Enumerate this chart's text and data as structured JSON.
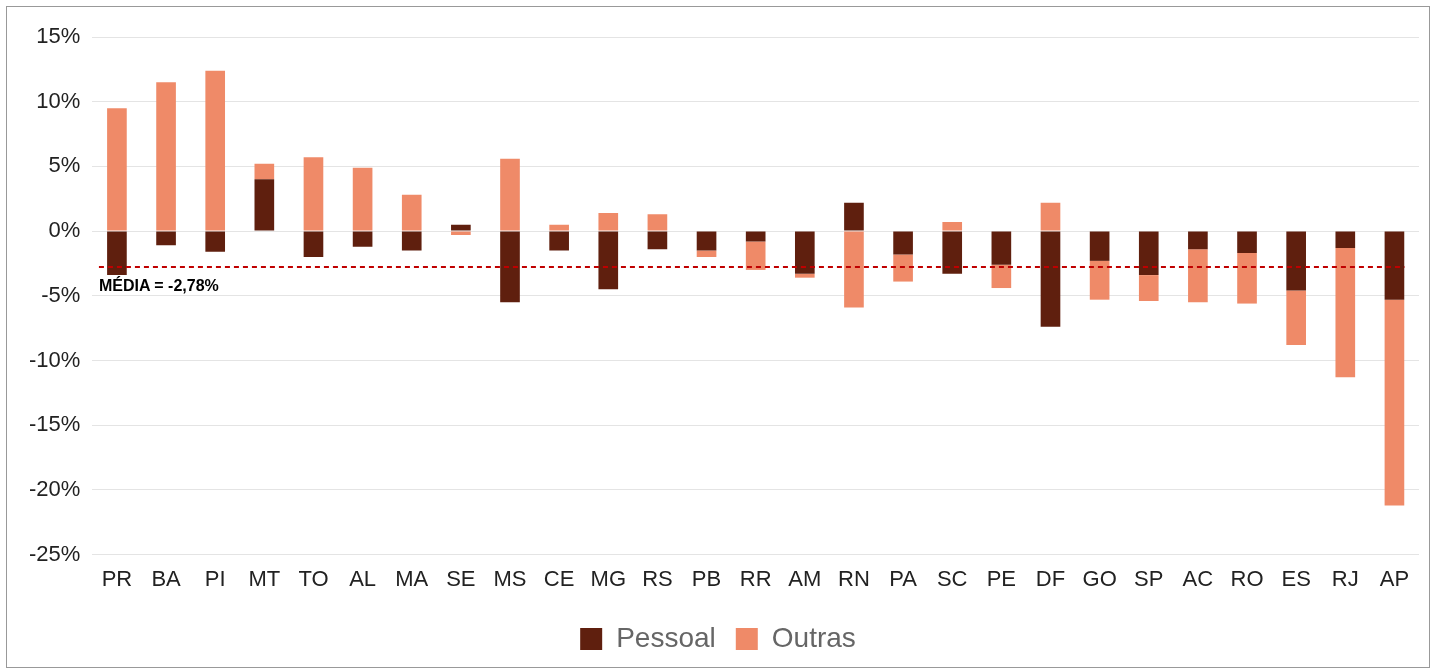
{
  "chart_data": {
    "type": "bar",
    "stacked": true,
    "categories": [
      "PR",
      "BA",
      "PI",
      "MT",
      "TO",
      "AL",
      "MA",
      "SE",
      "MS",
      "CE",
      "MG",
      "RS",
      "PB",
      "RR",
      "AM",
      "RN",
      "PA",
      "SC",
      "PE",
      "DF",
      "GO",
      "SP",
      "AC",
      "RO",
      "ES",
      "RJ",
      "AP"
    ],
    "series": [
      {
        "name": "Pessoal",
        "color": "#5f1f0e",
        "values": [
          -3.4,
          -1.1,
          -1.6,
          4.0,
          -2.0,
          -1.2,
          -1.5,
          0.5,
          -5.5,
          -1.5,
          -4.5,
          -1.4,
          -1.5,
          -0.8,
          -3.3,
          2.2,
          -1.8,
          -3.3,
          -2.6,
          -7.4,
          -2.3,
          -3.4,
          -1.4,
          -1.7,
          -4.6,
          -1.3,
          -5.3
        ]
      },
      {
        "name": "Outras",
        "color": "#ef8a68",
        "values": [
          9.5,
          11.5,
          12.4,
          1.2,
          5.7,
          4.9,
          2.8,
          -0.3,
          5.6,
          0.5,
          1.4,
          1.3,
          -0.5,
          -2.2,
          -0.3,
          -5.9,
          -2.1,
          0.7,
          -1.8,
          2.2,
          -3.0,
          -2.0,
          -4.1,
          -3.9,
          -4.2,
          -10.0,
          -15.9
        ]
      }
    ],
    "ylim": [
      -25,
      15
    ],
    "yticks": [
      {
        "value": -25,
        "label": "-25%"
      },
      {
        "value": -20,
        "label": "-20%"
      },
      {
        "value": -15,
        "label": "-15%"
      },
      {
        "value": -10,
        "label": "-10%"
      },
      {
        "value": -5,
        "label": "-5%"
      },
      {
        "value": 0,
        "label": "0%"
      },
      {
        "value": 5,
        "label": "5%"
      },
      {
        "value": 10,
        "label": "10%"
      },
      {
        "value": 15,
        "label": "15%"
      }
    ],
    "grid": "y",
    "legend": "bottom",
    "ref_lines": [
      {
        "axis": "y",
        "value": -2.78,
        "label": "MÉDIA = -2,78%",
        "color": "#c00000",
        "line_style": "dashed"
      }
    ]
  }
}
